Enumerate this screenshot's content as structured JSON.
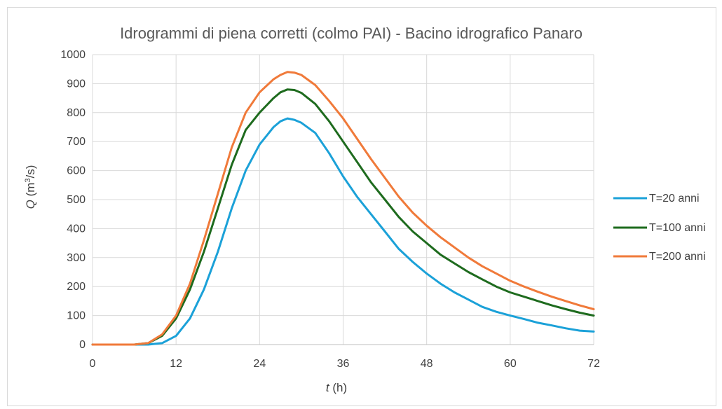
{
  "chart_data": {
    "type": "line",
    "title": "Idrogrammi di piena corretti (colmo PAI) - Bacino idrografico Panaro",
    "xlabel": {
      "var": "t",
      "unit": " (h)"
    },
    "ylabel": {
      "var": "Q",
      "unit_pre": " (m",
      "unit_sup": "3",
      "unit_post": "/s)"
    },
    "xlim": [
      0,
      72
    ],
    "ylim": [
      0,
      1000
    ],
    "x_ticks": [
      0,
      12,
      24,
      36,
      48,
      60,
      72
    ],
    "y_ticks": [
      0,
      100,
      200,
      300,
      400,
      500,
      600,
      700,
      800,
      900,
      1000
    ],
    "grid": true,
    "legend_position": "right",
    "x": [
      0,
      2,
      4,
      6,
      8,
      10,
      12,
      14,
      16,
      18,
      20,
      22,
      24,
      26,
      27,
      28,
      29,
      30,
      32,
      34,
      36,
      38,
      40,
      42,
      44,
      46,
      48,
      50,
      52,
      54,
      56,
      58,
      60,
      62,
      64,
      66,
      68,
      70,
      72
    ],
    "series": [
      {
        "name": "T=20 anni",
        "color": "#1ba1d8",
        "values": [
          0,
          0,
          0,
          0,
          0,
          5,
          30,
          90,
          190,
          320,
          470,
          600,
          690,
          750,
          770,
          780,
          775,
          765,
          730,
          660,
          580,
          510,
          450,
          390,
          330,
          285,
          245,
          210,
          180,
          155,
          130,
          113,
          100,
          88,
          75,
          66,
          56,
          48,
          45
        ]
      },
      {
        "name": "T=100 anni",
        "color": "#1e6b1e",
        "values": [
          0,
          0,
          0,
          0,
          5,
          30,
          90,
          190,
          320,
          470,
          620,
          740,
          800,
          850,
          870,
          880,
          878,
          868,
          830,
          770,
          700,
          630,
          560,
          500,
          440,
          390,
          350,
          310,
          280,
          250,
          225,
          200,
          180,
          165,
          150,
          135,
          122,
          110,
          100
        ]
      },
      {
        "name": "T=200 anni",
        "color": "#f07a3a",
        "values": [
          0,
          0,
          0,
          0,
          5,
          35,
          100,
          210,
          360,
          520,
          680,
          800,
          870,
          915,
          930,
          940,
          938,
          930,
          895,
          840,
          780,
          710,
          640,
          575,
          510,
          455,
          410,
          370,
          335,
          300,
          270,
          245,
          220,
          200,
          182,
          165,
          150,
          135,
          122
        ]
      }
    ]
  }
}
